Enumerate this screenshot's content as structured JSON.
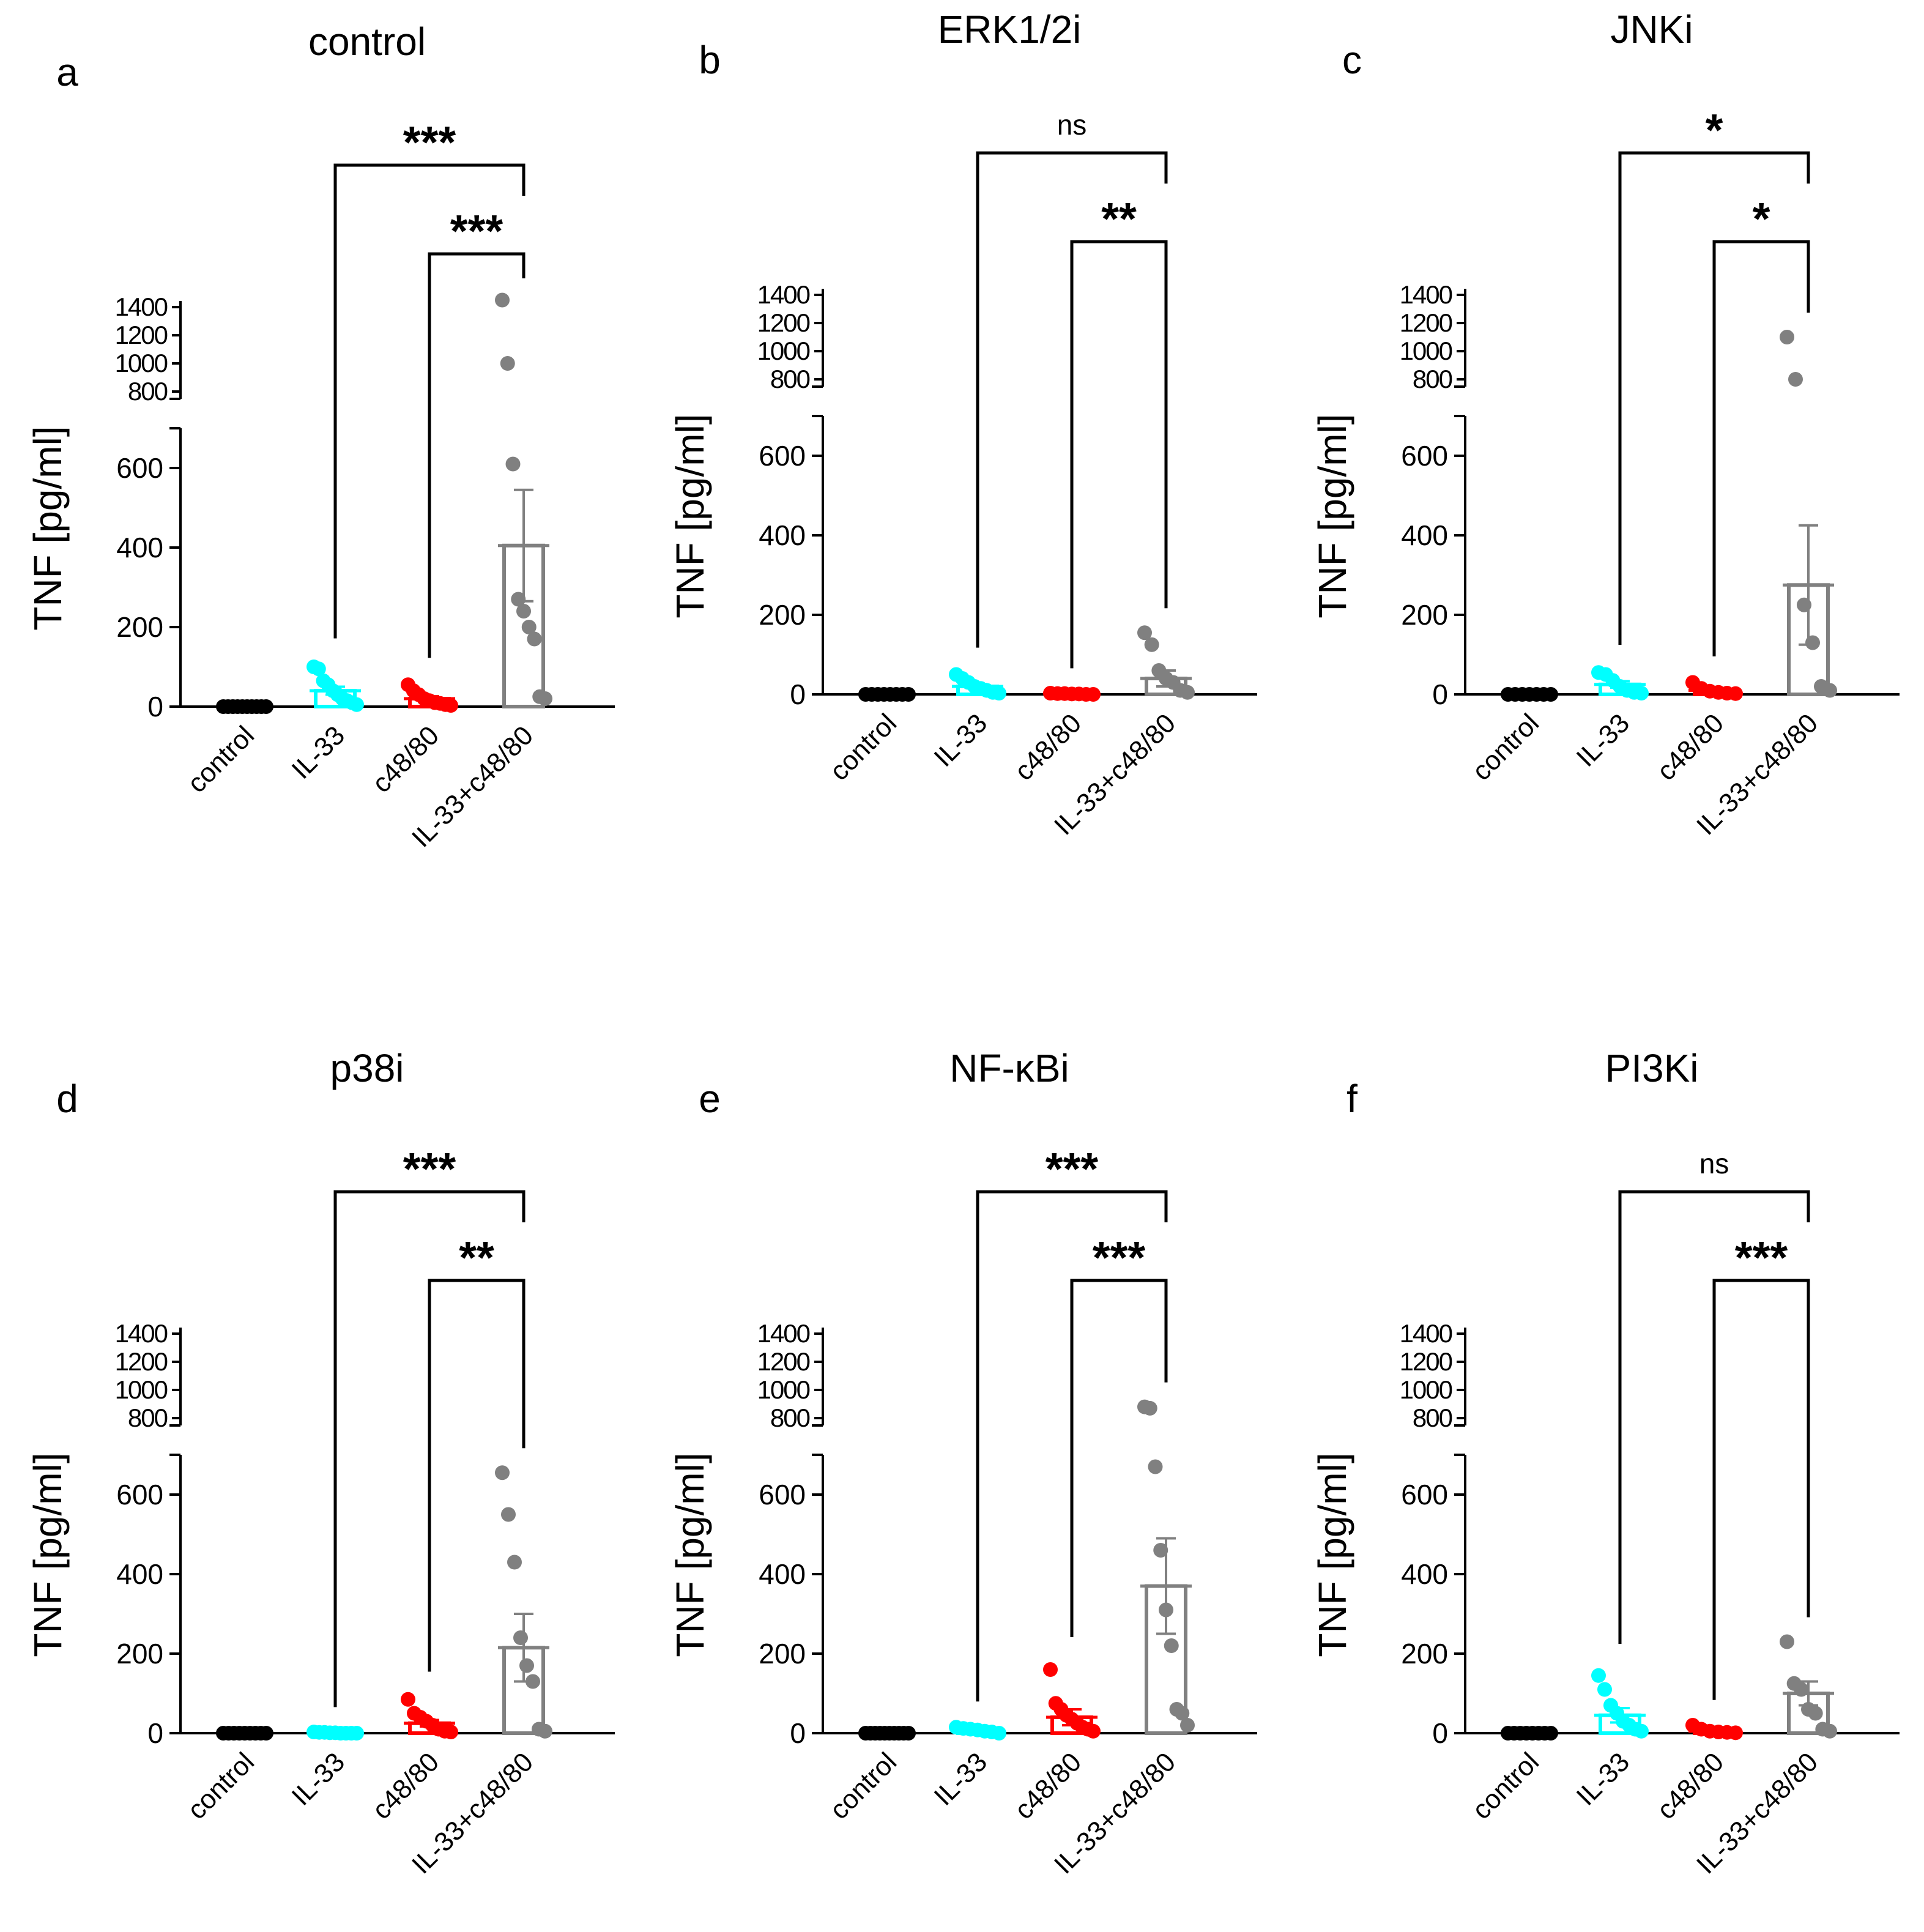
{
  "figure": {
    "colors": {
      "control": "#000000",
      "IL-33": "#00FFFF",
      "c48/80": "#FF0000",
      "IL-33+c48/80": "#808080",
      "axis": "#000000"
    }
  },
  "chart_data": [
    {
      "type": "bar",
      "panel_letter": "a",
      "title": "control",
      "ylabel": "TNF [pg/ml]",
      "categories": [
        "control",
        "IL-33",
        "c48/80",
        "IL-33+c48/80"
      ],
      "yaxis_lower": {
        "range": [
          0,
          700
        ],
        "ticks": [
          0,
          200,
          400,
          600
        ]
      },
      "yaxis_upper": {
        "range": [
          800,
          1400
        ],
        "ticks": [
          800,
          1000,
          1200,
          1400
        ]
      },
      "means": [
        0,
        40,
        20,
        405
      ],
      "sem": [
        0,
        10,
        6,
        140
      ],
      "points": [
        [
          0,
          0,
          0,
          0,
          0,
          0,
          0,
          0,
          0,
          0
        ],
        [
          100,
          95,
          65,
          55,
          40,
          30,
          20,
          15,
          10,
          5
        ],
        [
          55,
          40,
          30,
          20,
          15,
          10,
          8,
          5,
          3
        ],
        [
          1450,
          1000,
          610,
          270,
          240,
          200,
          170,
          25,
          20
        ]
      ],
      "significance": [
        {
          "from": "IL-33",
          "to": "IL-33+c48/80",
          "label": "***"
        },
        {
          "from": "c48/80",
          "to": "IL-33+c48/80",
          "label": "***"
        }
      ]
    },
    {
      "type": "bar",
      "panel_letter": "b",
      "title": "ERK1/2i",
      "ylabel": "TNF [pg/ml]",
      "categories": [
        "control",
        "IL-33",
        "c48/80",
        "IL-33+c48/80"
      ],
      "yaxis_lower": {
        "range": [
          0,
          700
        ],
        "ticks": [
          0,
          200,
          400,
          600
        ]
      },
      "yaxis_upper": {
        "range": [
          800,
          1400
        ],
        "ticks": [
          800,
          1000,
          1200,
          1400
        ]
      },
      "means": [
        0,
        20,
        2,
        40
      ],
      "sem": [
        0,
        6,
        1,
        20
      ],
      "points": [
        [
          0,
          0,
          0,
          0,
          0,
          0,
          0,
          0
        ],
        [
          50,
          40,
          30,
          20,
          15,
          10,
          5,
          3
        ],
        [
          3,
          2,
          2,
          1,
          1,
          0,
          0
        ],
        [
          155,
          125,
          60,
          40,
          30,
          10,
          5
        ]
      ],
      "significance": [
        {
          "from": "IL-33",
          "to": "IL-33+c48/80",
          "label": "ns"
        },
        {
          "from": "c48/80",
          "to": "IL-33+c48/80",
          "label": "**"
        }
      ]
    },
    {
      "type": "bar",
      "panel_letter": "c",
      "title": "JNKi",
      "ylabel": "TNF [pg/ml]",
      "categories": [
        "control",
        "IL-33",
        "c48/80",
        "IL-33+c48/80"
      ],
      "yaxis_lower": {
        "range": [
          0,
          700
        ],
        "ticks": [
          0,
          200,
          400,
          600
        ]
      },
      "yaxis_upper": {
        "range": [
          800,
          1400
        ],
        "ticks": [
          800,
          1000,
          1200,
          1400
        ]
      },
      "means": [
        0,
        25,
        10,
        275
      ],
      "sem": [
        0,
        8,
        4,
        150
      ],
      "points": [
        [
          0,
          0,
          0,
          0,
          0,
          0,
          0
        ],
        [
          55,
          50,
          35,
          20,
          10,
          5,
          3
        ],
        [
          30,
          15,
          8,
          5,
          3,
          2
        ],
        [
          1100,
          800,
          225,
          130,
          20,
          10
        ]
      ],
      "significance": [
        {
          "from": "IL-33",
          "to": "IL-33+c48/80",
          "label": "*"
        },
        {
          "from": "c48/80",
          "to": "IL-33+c48/80",
          "label": "*"
        }
      ]
    },
    {
      "type": "bar",
      "panel_letter": "d",
      "title": "p38i",
      "ylabel": "TNF [pg/ml]",
      "categories": [
        "control",
        "IL-33",
        "c48/80",
        "IL-33+c48/80"
      ],
      "yaxis_lower": {
        "range": [
          0,
          700
        ],
        "ticks": [
          0,
          200,
          400,
          600
        ]
      },
      "yaxis_upper": {
        "range": [
          800,
          1400
        ],
        "ticks": [
          800,
          1000,
          1200,
          1400
        ]
      },
      "means": [
        0,
        2,
        25,
        215
      ],
      "sem": [
        0,
        1,
        8,
        85
      ],
      "points": [
        [
          0,
          0,
          0,
          0,
          0,
          0,
          0,
          0,
          0
        ],
        [
          3,
          2,
          2,
          1,
          1,
          0,
          0,
          0,
          0
        ],
        [
          85,
          50,
          40,
          30,
          20,
          10,
          5,
          3
        ],
        [
          655,
          550,
          430,
          240,
          170,
          130,
          10,
          5
        ]
      ],
      "significance": [
        {
          "from": "IL-33",
          "to": "IL-33+c48/80",
          "label": "***"
        },
        {
          "from": "c48/80",
          "to": "IL-33+c48/80",
          "label": "**"
        }
      ]
    },
    {
      "type": "bar",
      "panel_letter": "e",
      "title": "NF-κBi",
      "ylabel": "TNF [pg/ml]",
      "categories": [
        "control",
        "IL-33",
        "c48/80",
        "IL-33+c48/80"
      ],
      "yaxis_lower": {
        "range": [
          0,
          700
        ],
        "ticks": [
          0,
          200,
          400,
          600
        ]
      },
      "yaxis_upper": {
        "range": [
          800,
          1400
        ],
        "ticks": [
          800,
          1000,
          1200,
          1400
        ]
      },
      "means": [
        0,
        10,
        40,
        370
      ],
      "sem": [
        0,
        3,
        20,
        120
      ],
      "points": [
        [
          0,
          0,
          0,
          0,
          0,
          0,
          0,
          0,
          0,
          0
        ],
        [
          15,
          12,
          10,
          8,
          5,
          3,
          0
        ],
        [
          160,
          75,
          60,
          45,
          35,
          25,
          15,
          10,
          5
        ],
        [
          880,
          870,
          670,
          460,
          310,
          220,
          60,
          50,
          20
        ]
      ],
      "significance": [
        {
          "from": "IL-33",
          "to": "IL-33+c48/80",
          "label": "***"
        },
        {
          "from": "c48/80",
          "to": "IL-33+c48/80",
          "label": "***"
        }
      ]
    },
    {
      "type": "bar",
      "panel_letter": "f",
      "title": "PI3Ki",
      "ylabel": "TNF [pg/ml]",
      "categories": [
        "control",
        "IL-33",
        "c48/80",
        "IL-33+c48/80"
      ],
      "yaxis_lower": {
        "range": [
          0,
          700
        ],
        "ticks": [
          0,
          200,
          400,
          600
        ]
      },
      "yaxis_upper": {
        "range": [
          800,
          1400
        ],
        "ticks": [
          800,
          1000,
          1200,
          1400
        ]
      },
      "means": [
        0,
        45,
        5,
        100
      ],
      "sem": [
        0,
        18,
        2,
        30
      ],
      "points": [
        [
          0,
          0,
          0,
          0,
          0,
          0,
          0,
          0
        ],
        [
          145,
          110,
          70,
          50,
          30,
          20,
          10,
          5
        ],
        [
          20,
          10,
          5,
          3,
          2,
          1
        ],
        [
          230,
          125,
          110,
          60,
          50,
          10,
          5
        ]
      ],
      "significance": [
        {
          "from": "IL-33",
          "to": "IL-33+c48/80",
          "label": "ns"
        },
        {
          "from": "c48/80",
          "to": "IL-33+c48/80",
          "label": "***"
        }
      ]
    }
  ]
}
